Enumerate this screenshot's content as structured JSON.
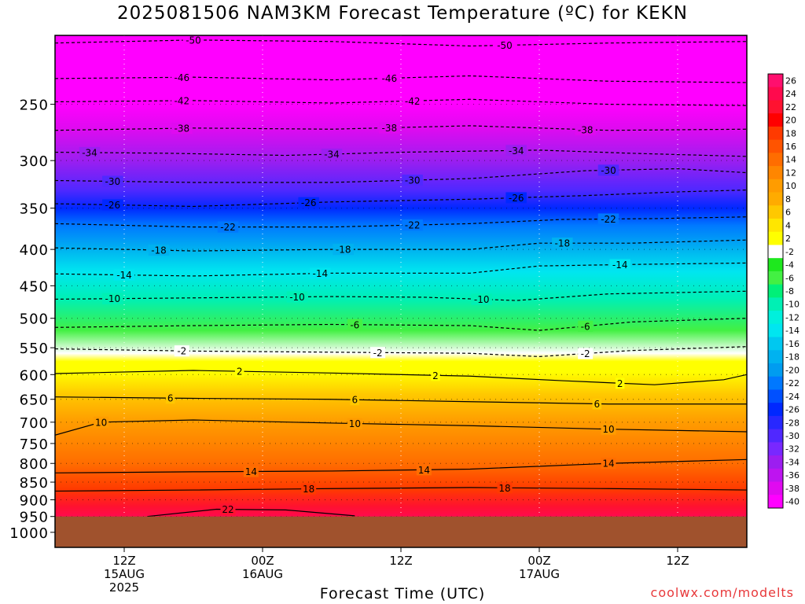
{
  "title": "2025081506 NAM3KM Forecast Temperature (ºC) for KEKN",
  "watermark": "coolwx.com/modelts",
  "chart_data": {
    "type": "heatmap",
    "title": "2025081506 NAM3KM Forecast Temperature (ºC) for KEKN",
    "xlabel": "Forecast Time (UTC)",
    "ylabel": "",
    "y_scale": "pressure (hPa, decreasing upward)",
    "ylim": [
      1050,
      200
    ],
    "xlim_hours": [
      0,
      60
    ],
    "grid": true,
    "y_ticks": [
      250,
      300,
      350,
      400,
      450,
      500,
      550,
      600,
      650,
      700,
      750,
      800,
      850,
      900,
      950,
      1000
    ],
    "x_ticks": [
      {
        "hour": 6,
        "lines": [
          "12Z",
          "15AUG",
          "2025"
        ]
      },
      {
        "hour": 18,
        "lines": [
          "00Z",
          "16AUG"
        ]
      },
      {
        "hour": 30,
        "lines": [
          "12Z",
          ""
        ]
      },
      {
        "hour": 42,
        "lines": [
          "00Z",
          "17AUG"
        ]
      },
      {
        "hour": 54,
        "lines": [
          "12Z",
          ""
        ]
      }
    ],
    "ground_level_hPa": 950,
    "colorbar": {
      "labels": [
        26,
        24,
        22,
        20,
        18,
        16,
        14,
        12,
        10,
        8,
        6,
        4,
        2,
        -2,
        -4,
        -6,
        -8,
        -10,
        -12,
        -14,
        -16,
        -18,
        -20,
        -22,
        -24,
        -26,
        -28,
        -30,
        -32,
        -34,
        -36,
        -38,
        -40
      ],
      "colors": [
        "#ff0f6e",
        "#ff0a4d",
        "#ff1230",
        "#ff0000",
        "#ff3a00",
        "#ff5400",
        "#ff6d00",
        "#ff8600",
        "#ff9c00",
        "#ffab00",
        "#ffc800",
        "#ffe600",
        "#ffff00",
        "#ffffff",
        "#1ee81e",
        "#43f043",
        "#00f078",
        "#00f0b4",
        "#00f0dc",
        "#00e6f0",
        "#00c8f0",
        "#00b2f0",
        "#009cf0",
        "#0078ff",
        "#0050ff",
        "#0028ff",
        "#2828ff",
        "#5028ff",
        "#7828ff",
        "#9c1ef0",
        "#be14f0",
        "#e00af0",
        "#ff00ff"
      ]
    },
    "temperature_profile": [
      {
        "p": 200,
        "t": -52
      },
      {
        "p": 230,
        "t": -46
      },
      {
        "p": 250,
        "t": -42
      },
      {
        "p": 270,
        "t": -38
      },
      {
        "p": 300,
        "t": -34
      },
      {
        "p": 330,
        "t": -30
      },
      {
        "p": 350,
        "t": -26
      },
      {
        "p": 370,
        "t": -22
      },
      {
        "p": 400,
        "t": -18
      },
      {
        "p": 430,
        "t": -14
      },
      {
        "p": 470,
        "t": -10
      },
      {
        "p": 520,
        "t": -6
      },
      {
        "p": 560,
        "t": -2
      },
      {
        "p": 575,
        "t": 0
      },
      {
        "p": 595,
        "t": 2
      },
      {
        "p": 640,
        "t": 6
      },
      {
        "p": 700,
        "t": 10
      },
      {
        "p": 800,
        "t": 14
      },
      {
        "p": 870,
        "t": 18
      },
      {
        "p": 920,
        "t": 22
      },
      {
        "p": 950,
        "t": 24
      }
    ],
    "contours": [
      {
        "value": -50,
        "label": "-50",
        "points": [
          [
            0,
            205
          ],
          [
            12,
            203
          ],
          [
            24,
            204
          ],
          [
            36,
            207
          ],
          [
            48,
            205
          ],
          [
            60,
            204
          ]
        ],
        "labels_at": [
          12,
          39
        ]
      },
      {
        "value": -46,
        "label": "-46",
        "points": [
          [
            0,
            230
          ],
          [
            12,
            229
          ],
          [
            24,
            231
          ],
          [
            36,
            228
          ],
          [
            48,
            232
          ],
          [
            60,
            233
          ]
        ],
        "labels_at": [
          11,
          29
        ]
      },
      {
        "value": -42,
        "label": "-42",
        "points": [
          [
            0,
            248
          ],
          [
            12,
            247
          ],
          [
            24,
            249
          ],
          [
            36,
            246
          ],
          [
            48,
            250
          ],
          [
            60,
            251
          ]
        ],
        "labels_at": [
          11,
          31
        ]
      },
      {
        "value": -38,
        "label": "-38",
        "points": [
          [
            0,
            272
          ],
          [
            12,
            270
          ],
          [
            24,
            271
          ],
          [
            36,
            268
          ],
          [
            48,
            272
          ],
          [
            60,
            271
          ]
        ],
        "labels_at": [
          11,
          29,
          46
        ]
      },
      {
        "value": -34,
        "label": "-34",
        "points": [
          [
            0,
            292
          ],
          [
            10,
            293
          ],
          [
            20,
            295
          ],
          [
            30,
            292
          ],
          [
            42,
            290
          ],
          [
            50,
            293
          ],
          [
            60,
            296
          ]
        ],
        "labels_at": [
          3,
          24,
          40
        ]
      },
      {
        "value": -30,
        "label": "-30",
        "points": [
          [
            0,
            320
          ],
          [
            12,
            322
          ],
          [
            24,
            322
          ],
          [
            36,
            318
          ],
          [
            46,
            310
          ],
          [
            54,
            308
          ],
          [
            60,
            312
          ]
        ],
        "labels_at": [
          5,
          31,
          48
        ]
      },
      {
        "value": -26,
        "label": "-26",
        "points": [
          [
            0,
            345
          ],
          [
            12,
            348
          ],
          [
            24,
            343
          ],
          [
            36,
            340
          ],
          [
            46,
            336
          ],
          [
            54,
            332
          ],
          [
            60,
            330
          ]
        ],
        "labels_at": [
          5,
          22,
          40
        ]
      },
      {
        "value": -22,
        "label": "-22",
        "points": [
          [
            0,
            368
          ],
          [
            12,
            372
          ],
          [
            24,
            372
          ],
          [
            36,
            368
          ],
          [
            44,
            363
          ],
          [
            52,
            362
          ],
          [
            60,
            360
          ]
        ],
        "labels_at": [
          15,
          31,
          48
        ]
      },
      {
        "value": -18,
        "label": "-18",
        "points": [
          [
            0,
            398
          ],
          [
            12,
            402
          ],
          [
            24,
            400
          ],
          [
            36,
            400
          ],
          [
            42,
            392
          ],
          [
            50,
            392
          ],
          [
            60,
            388
          ]
        ],
        "labels_at": [
          9,
          25,
          44
        ]
      },
      {
        "value": -14,
        "label": "-14",
        "points": [
          [
            0,
            433
          ],
          [
            12,
            436
          ],
          [
            24,
            432
          ],
          [
            36,
            432
          ],
          [
            42,
            422
          ],
          [
            50,
            420
          ],
          [
            60,
            418
          ]
        ],
        "labels_at": [
          6,
          23,
          49
        ]
      },
      {
        "value": -10,
        "label": "-10",
        "points": [
          [
            0,
            470
          ],
          [
            12,
            468
          ],
          [
            24,
            466
          ],
          [
            32,
            467
          ],
          [
            40,
            472
          ],
          [
            48,
            462
          ],
          [
            60,
            458
          ]
        ],
        "labels_at": [
          5,
          21,
          37
        ]
      },
      {
        "value": -6,
        "label": "-6",
        "points": [
          [
            0,
            515
          ],
          [
            12,
            512
          ],
          [
            24,
            510
          ],
          [
            36,
            512
          ],
          [
            42,
            520
          ],
          [
            50,
            506
          ],
          [
            60,
            500
          ]
        ],
        "labels_at": [
          26,
          46
        ]
      },
      {
        "value": -2,
        "label": "-2",
        "points": [
          [
            0,
            552
          ],
          [
            12,
            556
          ],
          [
            24,
            558
          ],
          [
            36,
            560
          ],
          [
            42,
            566
          ],
          [
            50,
            555
          ],
          [
            60,
            548
          ]
        ],
        "labels_at": [
          11,
          28,
          46
        ]
      },
      {
        "value": 2,
        "label": "2",
        "points": [
          [
            0,
            598
          ],
          [
            12,
            592
          ],
          [
            24,
            597
          ],
          [
            36,
            603
          ],
          [
            44,
            612
          ],
          [
            52,
            620
          ],
          [
            58,
            610
          ],
          [
            60,
            600
          ]
        ],
        "labels_at": [
          16,
          33,
          49
        ]
      },
      {
        "value": 6,
        "label": "6",
        "points": [
          [
            0,
            645
          ],
          [
            12,
            648
          ],
          [
            24,
            650
          ],
          [
            36,
            655
          ],
          [
            48,
            660
          ],
          [
            60,
            660
          ]
        ],
        "labels_at": [
          10,
          26,
          47
        ]
      },
      {
        "value": 10,
        "label": "10",
        "points": [
          [
            0,
            730
          ],
          [
            4,
            700
          ],
          [
            12,
            695
          ],
          [
            24,
            702
          ],
          [
            36,
            708
          ],
          [
            48,
            716
          ],
          [
            60,
            722
          ]
        ],
        "labels_at": [
          4,
          26,
          48
        ]
      },
      {
        "value": 14,
        "label": "14",
        "points": [
          [
            0,
            825
          ],
          [
            12,
            822
          ],
          [
            24,
            820
          ],
          [
            36,
            815
          ],
          [
            48,
            800
          ],
          [
            60,
            790
          ]
        ],
        "labels_at": [
          17,
          32,
          48
        ]
      },
      {
        "value": 18,
        "label": "18",
        "points": [
          [
            0,
            875
          ],
          [
            12,
            872
          ],
          [
            24,
            868
          ],
          [
            36,
            865
          ],
          [
            48,
            868
          ],
          [
            60,
            872
          ]
        ],
        "labels_at": [
          22,
          39
        ]
      },
      {
        "value": 22,
        "label": "22",
        "points": [
          [
            8,
            950
          ],
          [
            14,
            928
          ],
          [
            20,
            930
          ],
          [
            26,
            948
          ]
        ],
        "labels_at": [
          15
        ]
      }
    ]
  },
  "xaxis_title": "Forecast Time (UTC)"
}
